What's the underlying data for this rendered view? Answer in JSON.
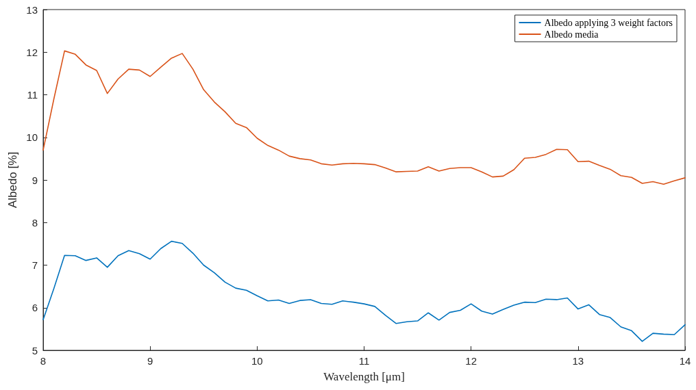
{
  "chart_data": {
    "type": "line",
    "xlabel": "Wavelength [μm]",
    "ylabel": "Albedo [%]",
    "x": [
      8.0,
      8.1,
      8.2,
      8.3,
      8.4,
      8.5,
      8.6,
      8.7,
      8.8,
      8.9,
      9.0,
      9.1,
      9.2,
      9.3,
      9.4,
      9.5,
      9.6,
      9.7,
      9.8,
      9.9,
      10.0,
      10.1,
      10.2,
      10.3,
      10.4,
      10.5,
      10.6,
      10.7,
      10.8,
      10.9,
      11.0,
      11.1,
      11.2,
      11.3,
      11.4,
      11.5,
      11.6,
      11.7,
      11.8,
      11.9,
      12.0,
      12.1,
      12.2,
      12.3,
      12.4,
      12.5,
      12.6,
      12.7,
      12.8,
      12.9,
      13.0,
      13.1,
      13.2,
      13.3,
      13.4,
      13.5,
      13.6,
      13.7,
      13.8,
      13.9,
      14.0
    ],
    "series": [
      {
        "name": "Albedo applying 3 weight factors",
        "color": "#0072bd",
        "values": [
          5.72,
          6.45,
          7.23,
          7.22,
          7.11,
          7.17,
          6.95,
          7.22,
          7.34,
          7.27,
          7.14,
          7.39,
          7.56,
          7.51,
          7.28,
          7.0,
          6.82,
          6.6,
          6.46,
          6.41,
          6.28,
          6.16,
          6.18,
          6.1,
          6.17,
          6.19,
          6.1,
          6.08,
          6.16,
          6.13,
          6.09,
          6.03,
          5.82,
          5.63,
          5.67,
          5.69,
          5.88,
          5.71,
          5.89,
          5.94,
          6.09,
          5.92,
          5.85,
          5.96,
          6.06,
          6.13,
          6.12,
          6.2,
          6.19,
          6.23,
          5.97,
          6.07,
          5.84,
          5.77,
          5.55,
          5.46,
          5.21,
          5.4,
          5.38,
          5.37,
          5.6
        ]
      },
      {
        "name": "Albedo media",
        "color": "#d95319",
        "values": [
          9.7,
          10.9,
          12.03,
          11.95,
          11.7,
          11.57,
          11.03,
          11.37,
          11.6,
          11.58,
          11.43,
          11.65,
          11.86,
          11.97,
          11.6,
          11.12,
          10.83,
          10.6,
          10.33,
          10.23,
          9.98,
          9.81,
          9.7,
          9.56,
          9.5,
          9.47,
          9.38,
          9.35,
          9.38,
          9.39,
          9.38,
          9.36,
          9.28,
          9.19,
          9.2,
          9.21,
          9.31,
          9.21,
          9.27,
          9.29,
          9.29,
          9.19,
          9.07,
          9.09,
          9.24,
          9.51,
          9.53,
          9.6,
          9.72,
          9.71,
          9.43,
          9.44,
          9.34,
          9.25,
          9.1,
          9.06,
          8.92,
          8.96,
          8.9,
          8.98,
          9.05
        ]
      }
    ],
    "xlim": [
      8,
      14
    ],
    "xticks": [
      8,
      9,
      10,
      11,
      12,
      13,
      14
    ],
    "ylim": [
      5,
      13
    ],
    "yticks": [
      5,
      6,
      7,
      8,
      9,
      10,
      11,
      12,
      13
    ],
    "legend": "top right",
    "grid": false,
    "marker": "none",
    "line_style": "solid"
  }
}
